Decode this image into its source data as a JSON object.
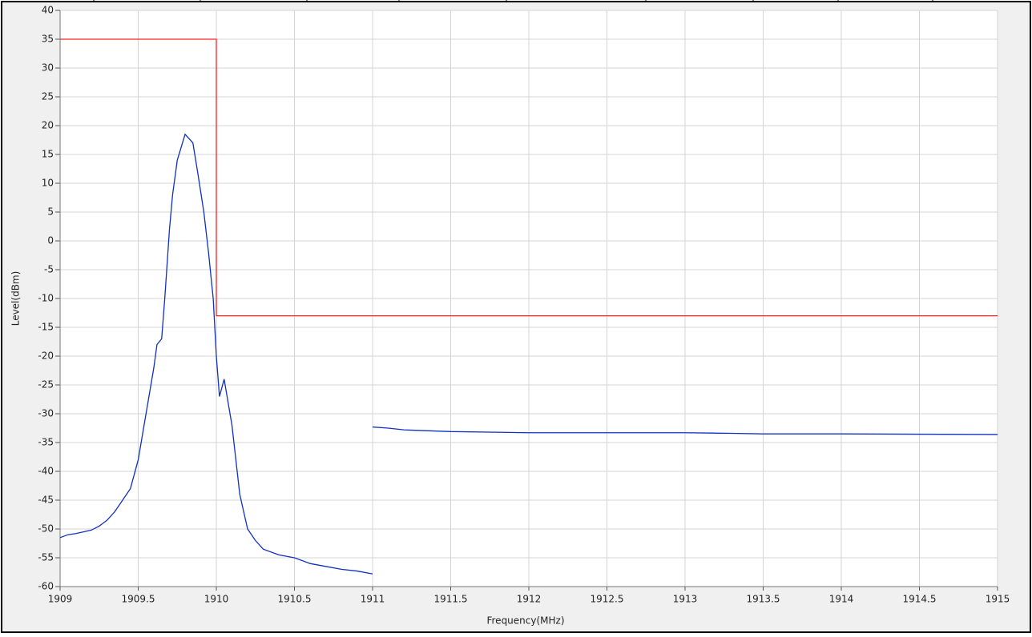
{
  "chart_data": {
    "type": "line",
    "xlabel": "Frequency(MHz)",
    "ylabel": "Level(dBm)",
    "xlim": [
      1909,
      1915
    ],
    "xticks": [
      1909,
      1909.5,
      1910,
      1910.5,
      1911,
      1911.5,
      1912,
      1912.5,
      1913,
      1913.5,
      1914,
      1914.5,
      1915
    ],
    "ylim": [
      -60,
      40
    ],
    "yticks": [
      -60,
      -55,
      -50,
      -45,
      -40,
      -35,
      -30,
      -25,
      -20,
      -15,
      -10,
      -5,
      0,
      5,
      10,
      15,
      20,
      25,
      30,
      35,
      40
    ],
    "grid": true,
    "series": [
      {
        "color": "#ff2020",
        "x": [
          1909,
          1910,
          1910,
          1915
        ],
        "values": [
          35,
          35,
          -13,
          -13
        ]
      },
      {
        "color": "#1030c0",
        "x": [
          1909,
          1909.05,
          1909.1,
          1909.15,
          1909.2,
          1909.25,
          1909.3,
          1909.35,
          1909.4,
          1909.45,
          1909.5,
          1909.55,
          1909.6,
          1909.62,
          1909.65,
          1909.67,
          1909.7,
          1909.72,
          1909.75,
          1909.8,
          1909.85,
          1909.88,
          1909.92,
          1909.95,
          1909.98,
          1910,
          1910.02,
          1910.05,
          1910.1,
          1910.15,
          1910.2,
          1910.25,
          1910.3,
          1910.4,
          1910.5,
          1910.6,
          1910.7,
          1910.8,
          1910.9,
          1911,
          1911,
          1911,
          1911.1,
          1911.2,
          1911.5,
          1912,
          1912.5,
          1913,
          1913.3,
          1913.5,
          1914,
          1915
        ],
        "values": [
          -51.5,
          -51,
          -50.8,
          -50.5,
          -50.2,
          -49.5,
          -48.5,
          -47,
          -45,
          -43,
          -38,
          -30,
          -22,
          -18,
          -17,
          -10,
          2,
          8,
          14,
          18.5,
          17,
          12,
          5,
          -2,
          -10,
          -20,
          -27,
          -24,
          -32,
          -44,
          -50,
          -52,
          -53.5,
          -54.5,
          -55,
          -56,
          -56.5,
          -57,
          -57.3,
          -57.8,
          null,
          -32.3,
          -32.5,
          -32.8,
          -33.1,
          -33.3,
          -33.3,
          -33.3,
          -33.4,
          -33.5,
          -33.5,
          -33.6
        ]
      }
    ]
  }
}
